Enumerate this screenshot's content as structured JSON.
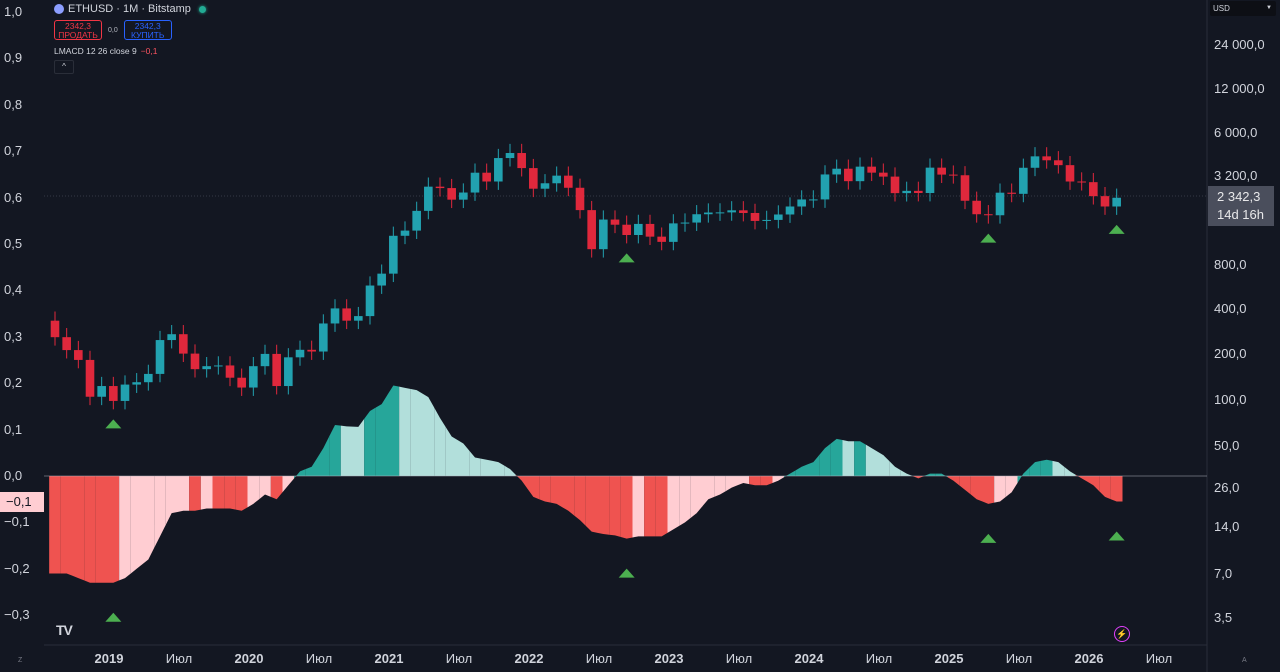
{
  "header": {
    "symbol": "ETHUSD · 1M · Bitstamp",
    "sell_price": "2342,3",
    "sell_label": "ПРОДАТЬ",
    "spread": "0,0",
    "buy_price": "2342,3",
    "buy_label": "КУПИТЬ",
    "indicator_label": "LMACD 12 26 close 9",
    "indicator_value": "−0,1",
    "collapse_icon": "^"
  },
  "currency": "USD",
  "current_price": "2 342,3",
  "countdown": "14d 16h",
  "left_axis": [
    "1,0",
    "0,9",
    "0,8",
    "0,7",
    "0,6",
    "0,5",
    "0,4",
    "0,3",
    "0,2",
    "0,1",
    "0,0",
    "−0,1",
    "−0,2",
    "−0,3"
  ],
  "left_axis_highlight": "−0,1",
  "right_axis": [
    "24 000,0",
    "12 000,0",
    "6 000,0",
    "3 200,0",
    "800,0",
    "400,0",
    "200,0",
    "100,0",
    "50,0",
    "26,0",
    "14,0",
    "7,0",
    "3,5"
  ],
  "time_axis": [
    {
      "label": "2019",
      "year": true
    },
    {
      "label": "Июл",
      "year": false
    },
    {
      "label": "2020",
      "year": true
    },
    {
      "label": "Июл",
      "year": false
    },
    {
      "label": "2021",
      "year": true
    },
    {
      "label": "Июл",
      "year": false
    },
    {
      "label": "2022",
      "year": true
    },
    {
      "label": "Июл",
      "year": false
    },
    {
      "label": "2023",
      "year": true
    },
    {
      "label": "Июл",
      "year": false
    },
    {
      "label": "2024",
      "year": true
    },
    {
      "label": "Июл",
      "year": false
    },
    {
      "label": "2025",
      "year": true
    },
    {
      "label": "Июл",
      "year": false
    },
    {
      "label": "2026",
      "year": true
    },
    {
      "label": "Июл",
      "year": false
    }
  ],
  "logo": "TV",
  "corner_left": "Z",
  "corner_right": "A",
  "colors": {
    "up": "#22a2b0",
    "down": "#e0283c",
    "hist_pos_up": "#26a69a",
    "hist_pos_down": "#b2dfdb",
    "hist_neg_down": "#ef5350",
    "hist_neg_up": "#ffcdd2",
    "signal": "#4caf50"
  },
  "chart_data": {
    "type": "candlestick+area",
    "start": "2018-08",
    "interval": "1M",
    "first_open": 360,
    "closes": [
      280,
      230,
      198,
      113,
      133,
      106,
      136,
      141,
      160,
      268,
      293,
      218,
      172,
      180,
      182,
      151,
      130,
      180,
      217,
      133,
      206,
      231,
      225,
      345,
      434,
      360,
      386,
      615,
      737,
      1312,
      1420,
      1918,
      2773,
      2714,
      2275,
      2536,
      3430,
      3000,
      4288,
      4630,
      3680,
      2688,
      2920,
      3280,
      2727,
      1940,
      1070,
      1680,
      1553,
      1328,
      1572,
      1295,
      1196,
      1585,
      1605,
      1822,
      1870,
      1874,
      1934,
      1857,
      1645,
      1671,
      1815,
      2050,
      2282,
      2283,
      3340,
      3645,
      3015,
      3762,
      3433,
      3232,
      2513,
      2602,
      2518,
      3705,
      3332,
      3300,
      2237,
      1822,
      1794,
      2530,
      2486,
      3698,
      4400,
      4145,
      3848,
      3000,
      2970,
      2400,
      2050,
      2342.3
    ],
    "lmacd": [
      -0.21,
      -0.21,
      -0.22,
      -0.23,
      -0.23,
      -0.23,
      -0.22,
      -0.2,
      -0.18,
      -0.13,
      -0.08,
      -0.075,
      -0.075,
      -0.07,
      -0.07,
      -0.07,
      -0.075,
      -0.06,
      -0.04,
      -0.05,
      -0.02,
      0.01,
      0.02,
      0.06,
      0.11,
      0.107,
      0.106,
      0.14,
      0.155,
      0.195,
      0.19,
      0.185,
      0.17,
      0.125,
      0.085,
      0.07,
      0.04,
      0.035,
      0.03,
      0.015,
      -0.01,
      -0.045,
      -0.055,
      -0.06,
      -0.075,
      -0.095,
      -0.12,
      -0.125,
      -0.128,
      -0.135,
      -0.13,
      -0.13,
      -0.13,
      -0.115,
      -0.1,
      -0.08,
      -0.05,
      -0.04,
      -0.025,
      -0.015,
      -0.02,
      -0.02,
      -0.01,
      0.005,
      0.02,
      0.03,
      0.06,
      0.08,
      0.075,
      0.075,
      0.06,
      0.045,
      0.02,
      0.005,
      -0.005,
      0.005,
      0.005,
      -0.01,
      -0.03,
      -0.05,
      -0.06,
      -0.055,
      -0.035,
      0.005,
      0.03,
      0.035,
      0.03,
      0.01,
      -0.005,
      -0.02,
      -0.045,
      -0.055
    ],
    "signals": [
      5,
      49,
      80,
      91
    ],
    "price_scale": "log",
    "price_range": [
      3.5,
      24000
    ],
    "indicator_range": [
      -0.3,
      1.0
    ]
  }
}
